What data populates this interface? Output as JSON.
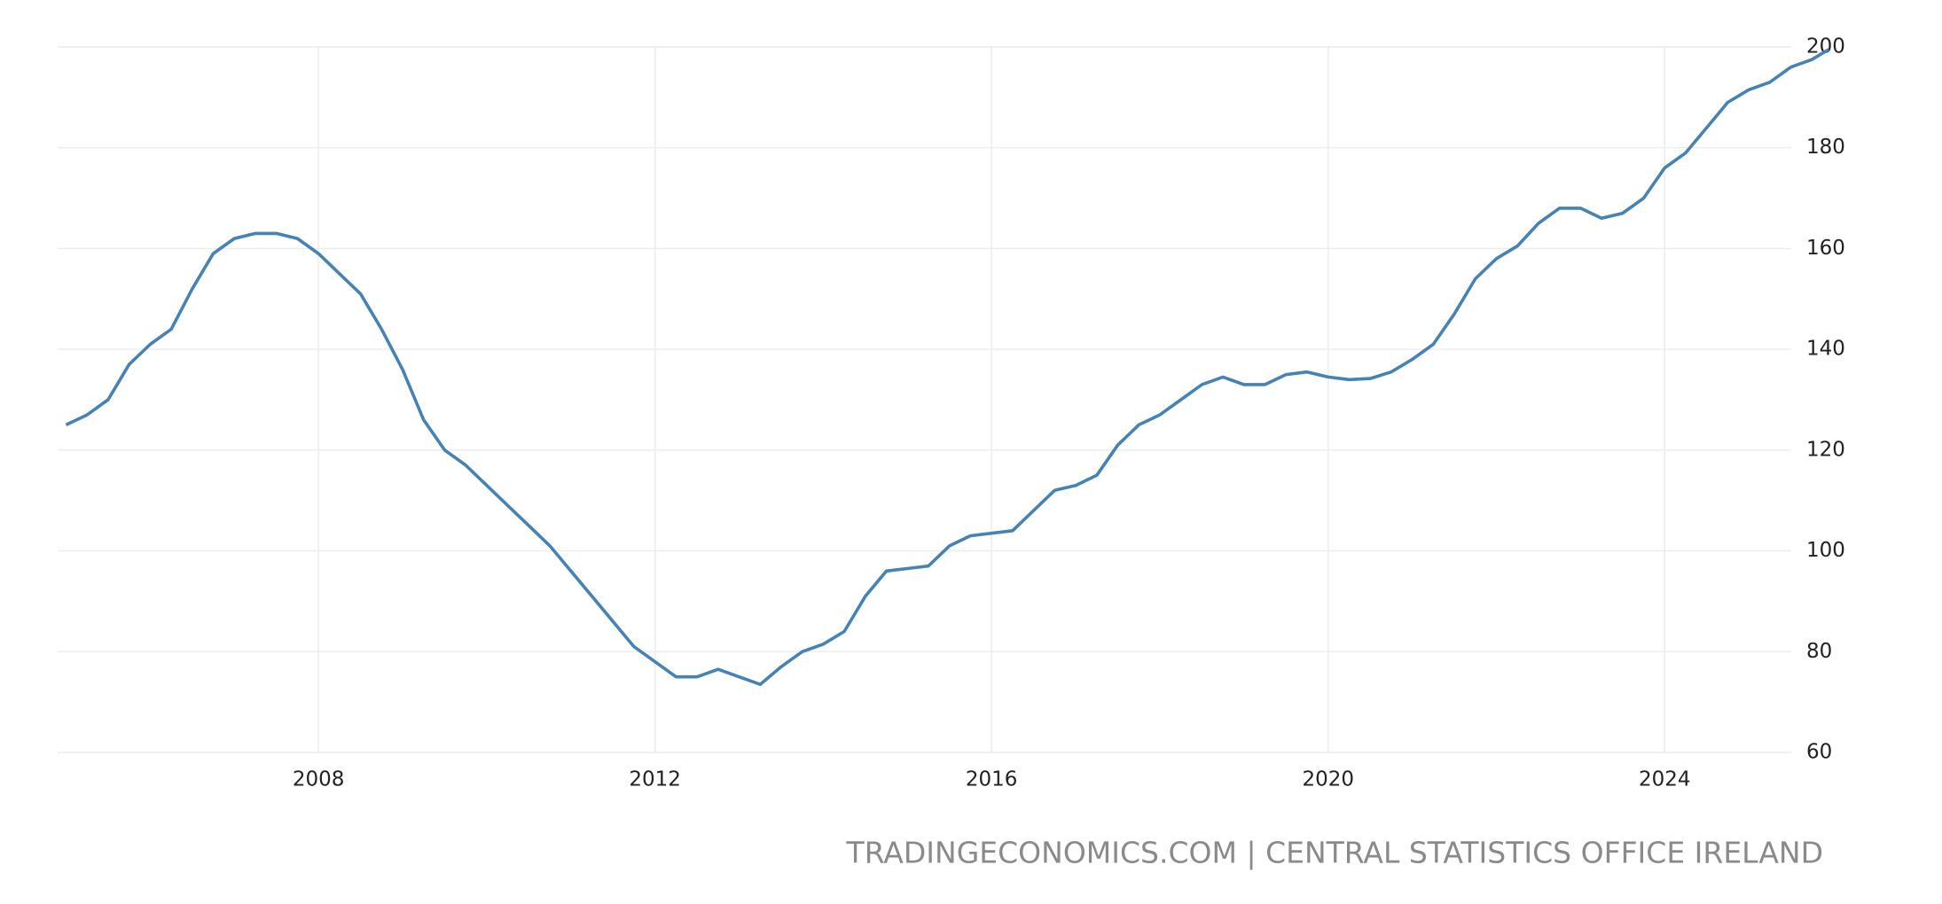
{
  "chart_data": {
    "type": "line",
    "source": "TRADINGECONOMICS.COM | CENTRAL STATISTICS OFFICE IRELAND",
    "x": [
      2005.0,
      2005.25,
      2005.5,
      2005.75,
      2006.0,
      2006.25,
      2006.5,
      2006.75,
      2007.0,
      2007.25,
      2007.5,
      2007.75,
      2008.0,
      2008.25,
      2008.5,
      2008.75,
      2009.0,
      2009.25,
      2009.5,
      2009.75,
      2010.0,
      2010.25,
      2010.5,
      2010.75,
      2011.0,
      2011.25,
      2011.5,
      2011.75,
      2012.0,
      2012.25,
      2012.5,
      2012.75,
      2013.0,
      2013.25,
      2013.5,
      2013.75,
      2014.0,
      2014.25,
      2014.5,
      2014.75,
      2015.0,
      2015.25,
      2015.5,
      2015.75,
      2016.0,
      2016.25,
      2016.5,
      2016.75,
      2017.0,
      2017.25,
      2017.5,
      2017.75,
      2018.0,
      2018.25,
      2018.5,
      2018.75,
      2019.0,
      2019.25,
      2019.5,
      2019.75,
      2020.0,
      2020.25,
      2020.5,
      2020.75,
      2021.0,
      2021.25,
      2021.5,
      2021.75,
      2022.0,
      2022.25,
      2022.5,
      2022.75,
      2023.0,
      2023.25,
      2023.5,
      2023.75,
      2024.0,
      2024.25,
      2024.5,
      2024.75,
      2025.0,
      2025.25,
      2025.5,
      2025.75,
      2025.95
    ],
    "series": [
      {
        "color": "#4682b4",
        "values": [
          125,
          127,
          130,
          137,
          141,
          144,
          152,
          159,
          162,
          163,
          163,
          162,
          159,
          155,
          151,
          144,
          136,
          126,
          120,
          117,
          113,
          109,
          105,
          101,
          96,
          91,
          86,
          81,
          78,
          75,
          75,
          76.5,
          75,
          73.5,
          77,
          80,
          81.5,
          84,
          91,
          96,
          96.5,
          97,
          101,
          103,
          103.5,
          104,
          108,
          112,
          113,
          115,
          121,
          125,
          127,
          130,
          133,
          134.5,
          133,
          133,
          135,
          135.5,
          134.5,
          134,
          134.2,
          135.5,
          138,
          141,
          147,
          154,
          158,
          160.5,
          165,
          168,
          168,
          166,
          167,
          170,
          176,
          179,
          184,
          189,
          191.5,
          193,
          196,
          197.5,
          199.5
        ]
      }
    ],
    "xlim": [
      2004.9,
      2026.0
    ],
    "xticks": [
      2008,
      2012,
      2016,
      2020,
      2024
    ],
    "ylim": [
      60,
      200
    ],
    "yticks": [
      60,
      80,
      100,
      120,
      140,
      160,
      180,
      200
    ],
    "grid": true
  }
}
